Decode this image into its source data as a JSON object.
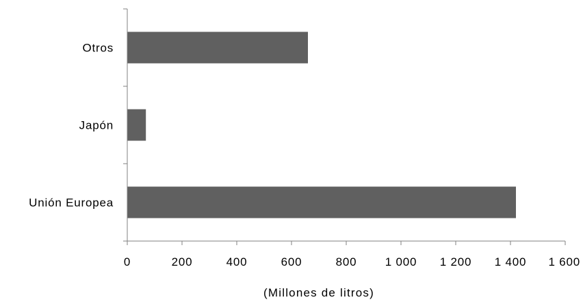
{
  "chart_data": {
    "type": "bar",
    "orientation": "horizontal",
    "categories": [
      "Unión Europea",
      "Japón",
      "Otros"
    ],
    "values": [
      1420,
      68,
      660
    ],
    "xlabel": "(Millones de litros)",
    "ylabel": "",
    "xlim": [
      0,
      1600
    ],
    "xticks": [
      0,
      200,
      400,
      600,
      800,
      1000,
      1200,
      1400,
      1600
    ],
    "xtick_labels": [
      "0",
      "200",
      "400",
      "600",
      "800",
      "1 000",
      "1 200",
      "1 400",
      "1 600"
    ],
    "grid": false,
    "legend": "none",
    "bar_color": "#606060",
    "axis_color": "#808080"
  }
}
